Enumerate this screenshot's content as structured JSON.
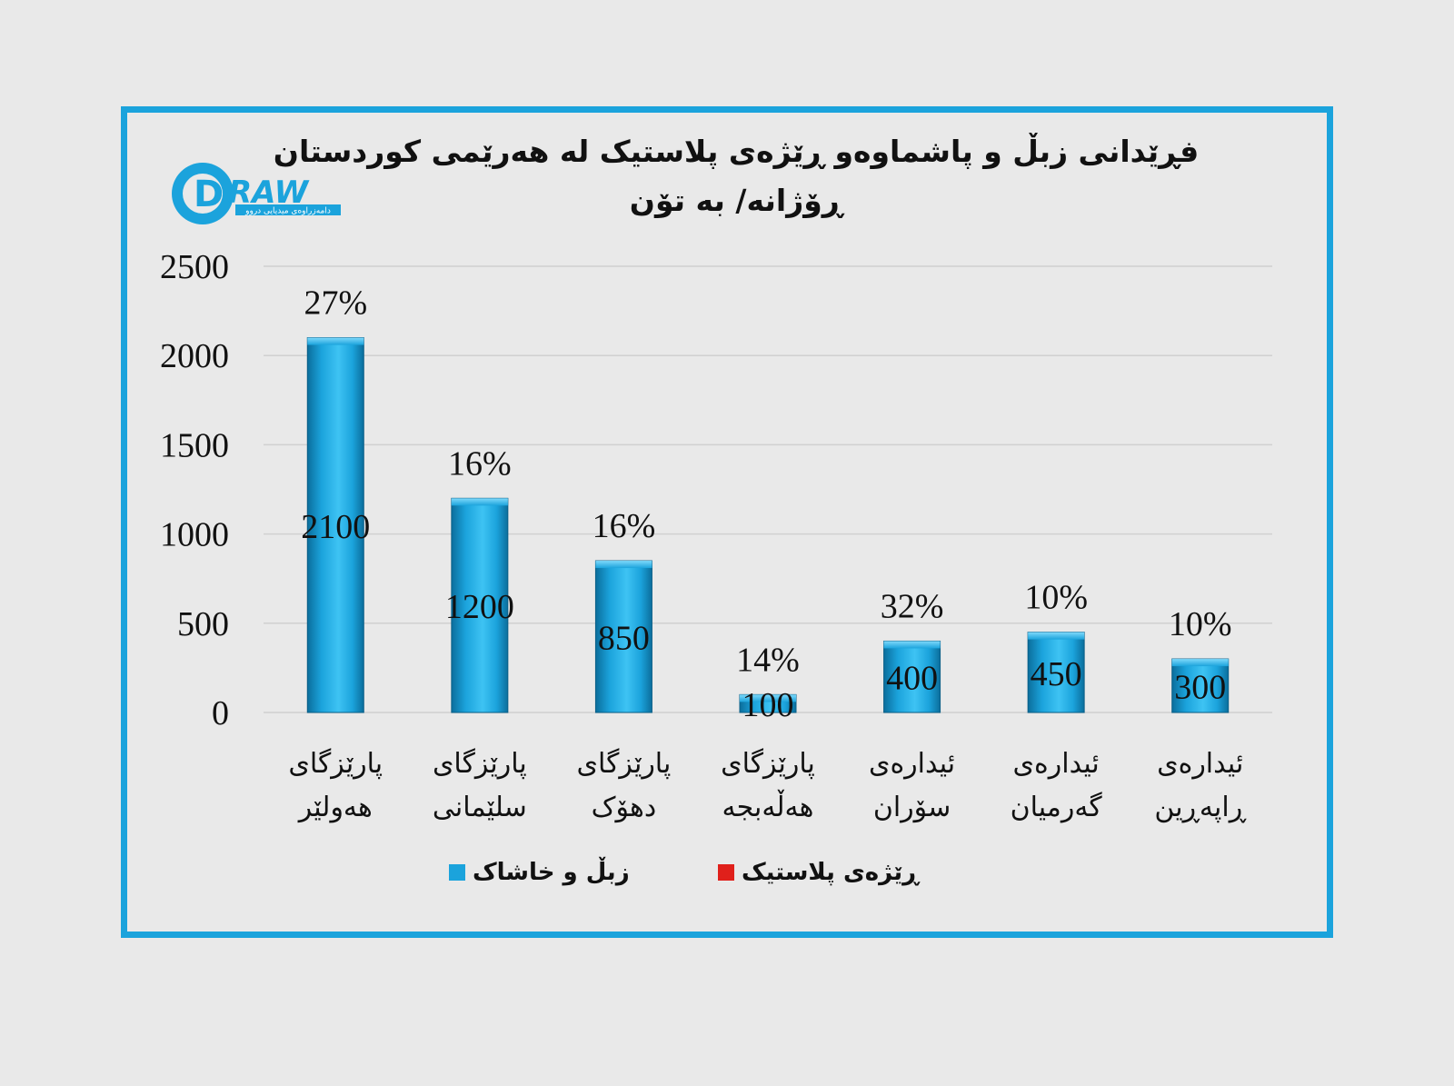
{
  "chart_data": {
    "type": "bar",
    "title": [
      "فڕێدانی زبڵ و پاشماوەو ڕێژەی پلاستیک لە هەرێمی كوردستان",
      "ڕۆژانە/ بە تۆن"
    ],
    "categories": [
      [
        "پارێزگای",
        "هەولێر"
      ],
      [
        "پارێزگای",
        "سلێمانی"
      ],
      [
        "پارێزگای",
        "دهۆک"
      ],
      [
        "پارێزگای",
        "هەڵەبجە"
      ],
      [
        "ئیدارەی",
        "سۆران"
      ],
      [
        "ئیدارەی",
        "گەرمیان"
      ],
      [
        "ئیدارەی",
        "ڕاپەڕین"
      ]
    ],
    "series": [
      {
        "name": "زبڵ و خاشاک",
        "color": "#1ba3dc",
        "values": [
          2100,
          1200,
          850,
          100,
          400,
          450,
          300
        ]
      },
      {
        "name": "ڕێژەی پلاستیک",
        "color": "#e0201b",
        "values": [
          "27%",
          "16%",
          "16%",
          "14%",
          "32%",
          "10%",
          "10%"
        ]
      }
    ],
    "yticks": [
      0,
      500,
      1000,
      1500,
      2000,
      2500
    ],
    "ylim": [
      0,
      2500
    ],
    "grid": true,
    "legend_position": "bottom"
  },
  "logo": {
    "text": "RAW",
    "letter": "D",
    "tagline": "دامەزراوەی میدیایی دروو",
    "color": "#1ba3dc"
  }
}
